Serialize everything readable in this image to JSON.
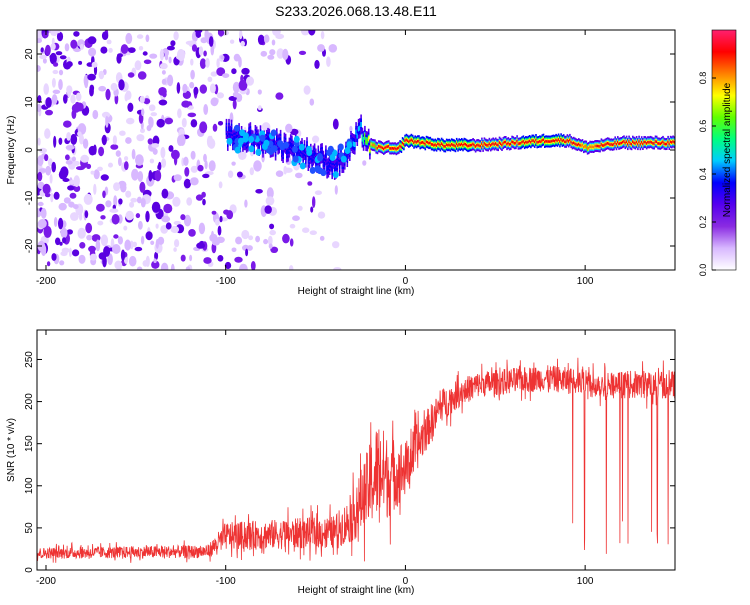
{
  "figure": {
    "title": "S233.2026.068.13.48.E11"
  },
  "chart_data": [
    {
      "type": "heatmap",
      "title": "S233.2026.068.13.48.E11",
      "xlabel": "Height of straight line (km)",
      "ylabel": "Frequency (Hz)",
      "xlim": [
        -205,
        150
      ],
      "ylim": [
        -25,
        25
      ],
      "x_ticks": [
        -200,
        -100,
        0,
        100
      ],
      "y_ticks": [
        -20,
        -10,
        0,
        10,
        20
      ],
      "colorbar": {
        "label": "Normalized spectral amplitude",
        "range": [
          0,
          1
        ],
        "ticks": [
          0.0,
          0.2,
          0.4,
          0.6,
          0.8
        ],
        "colors": [
          "#ffffff",
          "#d8b8ff",
          "#8a2be2",
          "#5500ee",
          "#0000ff",
          "#00ccff",
          "#00ff80",
          "#60ff00",
          "#ffff00",
          "#ff8000",
          "#ff0000",
          "#ff2070"
        ]
      },
      "ridge": {
        "x": [
          -100,
          -80,
          -60,
          -40,
          -35,
          -25,
          -20,
          -15,
          -10,
          -5,
          0,
          10,
          20,
          40,
          60,
          80,
          90,
          100,
          120,
          150
        ],
        "freq": [
          3,
          2,
          0,
          -3,
          -2,
          4,
          1,
          0.5,
          0.5,
          0,
          2,
          1.5,
          1,
          1,
          1.5,
          2,
          2,
          0.5,
          1.5,
          1.5
        ],
        "amplitude": [
          0.35,
          0.35,
          0.35,
          0.35,
          0.3,
          0.5,
          0.75,
          0.9,
          0.9,
          0.9,
          0.95,
          0.95,
          0.95,
          0.9,
          0.9,
          0.95,
          0.9,
          0.85,
          0.9,
          0.9
        ]
      },
      "noise": {
        "strong_until_x": -110,
        "fades_until_x": -20
      }
    },
    {
      "type": "line",
      "xlabel": "Height of straight line (km)",
      "ylabel": "SNR (10 * v/v)",
      "xlim": [
        -205,
        150
      ],
      "ylim": [
        0,
        285
      ],
      "x_ticks": [
        -200,
        -100,
        0,
        100
      ],
      "y_ticks": [
        0,
        50,
        100,
        150,
        200,
        250
      ],
      "line_color": "#ee3333",
      "envelope": {
        "x": [
          -205,
          -110,
          -100,
          -40,
          -30,
          -20,
          -15,
          -10,
          0,
          10,
          20,
          30,
          40,
          60,
          80,
          100,
          120,
          150
        ],
        "mean": [
          20,
          22,
          40,
          45,
          60,
          100,
          120,
          110,
          120,
          160,
          195,
          210,
          220,
          225,
          228,
          222,
          220,
          220
        ],
        "spread": [
          12,
          14,
          30,
          35,
          50,
          90,
          110,
          90,
          60,
          45,
          35,
          30,
          28,
          28,
          28,
          30,
          30,
          30
        ]
      },
      "dropouts": {
        "x_range": [
          92,
          148
        ],
        "min_value": 18
      }
    }
  ]
}
